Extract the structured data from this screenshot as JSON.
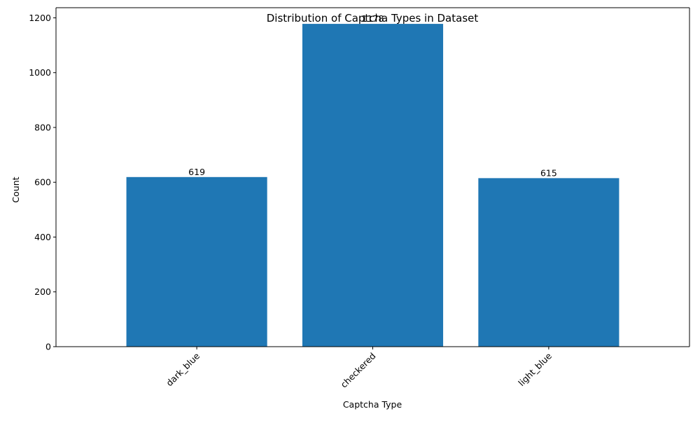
{
  "chart_data": {
    "type": "bar",
    "title": "Distribution of Captcha Types in Dataset",
    "xlabel": "Captcha Type",
    "ylabel": "Count",
    "categories": [
      "dark_blue",
      "checkered",
      "light_blue"
    ],
    "values": [
      619,
      1178,
      615
    ],
    "data_labels": [
      "619",
      "1178",
      "615"
    ],
    "ylim": [
      0,
      1237
    ],
    "yticks": [
      0,
      200,
      400,
      600,
      800,
      1000,
      1200
    ],
    "ytick_labels": [
      "0",
      "200",
      "400",
      "600",
      "800",
      "1000",
      "1200"
    ],
    "xtick_rotation_deg": 45,
    "bar_color": "#1f77b4",
    "grid": false,
    "legend": false
  }
}
